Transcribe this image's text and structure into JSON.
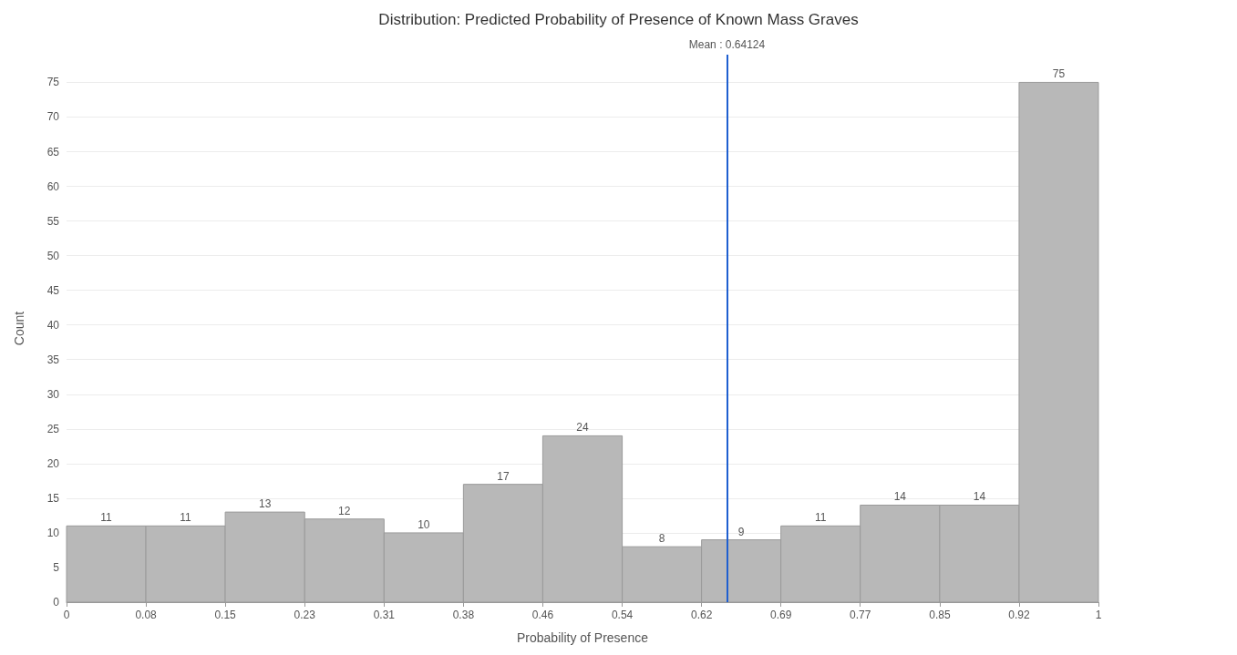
{
  "chart_data": {
    "type": "histogram",
    "title": "Distribution: Predicted Probability of Presence of Known Mass Graves",
    "xlabel": "Probability of Presence",
    "ylabel": "Count",
    "bins": [
      0,
      0.0769,
      0.1538,
      0.2308,
      0.3077,
      0.3846,
      0.4615,
      0.5385,
      0.6154,
      0.6923,
      0.7692,
      0.8462,
      0.9231,
      1
    ],
    "values": [
      11,
      11,
      13,
      12,
      10,
      17,
      24,
      8,
      9,
      11,
      14,
      14,
      75
    ],
    "color": "#b8b8b8",
    "data_labels": true,
    "xlim": [
      0,
      1
    ],
    "xticks": [
      0,
      {
        "value": 0.0769,
        "label": "0.08"
      },
      {
        "value": 0.1538,
        "label": "0.15"
      },
      {
        "value": 0.2308,
        "label": "0.23"
      },
      {
        "value": 0.3077,
        "label": "0.31"
      },
      {
        "value": 0.3846,
        "label": "0.38"
      },
      {
        "value": 0.4615,
        "label": "0.46"
      },
      {
        "value": 0.5385,
        "label": "0.54"
      },
      {
        "value": 0.6154,
        "label": "0.62"
      },
      {
        "value": 0.6923,
        "label": "0.69"
      },
      {
        "value": 0.7692,
        "label": "0.77"
      },
      {
        "value": 0.8462,
        "label": "0.85"
      },
      {
        "value": 0.9231,
        "label": "0.92"
      },
      1
    ],
    "ylim": [
      0,
      79
    ],
    "yticks": [
      0,
      5,
      10,
      15,
      20,
      25,
      30,
      35,
      40,
      45,
      50,
      55,
      60,
      65,
      70,
      75
    ],
    "grid": "y",
    "ref_lines": [
      {
        "axis": "x",
        "value": 0.64124,
        "label": "Mean : 0.64124",
        "color": "#1f5fd0"
      }
    ]
  }
}
